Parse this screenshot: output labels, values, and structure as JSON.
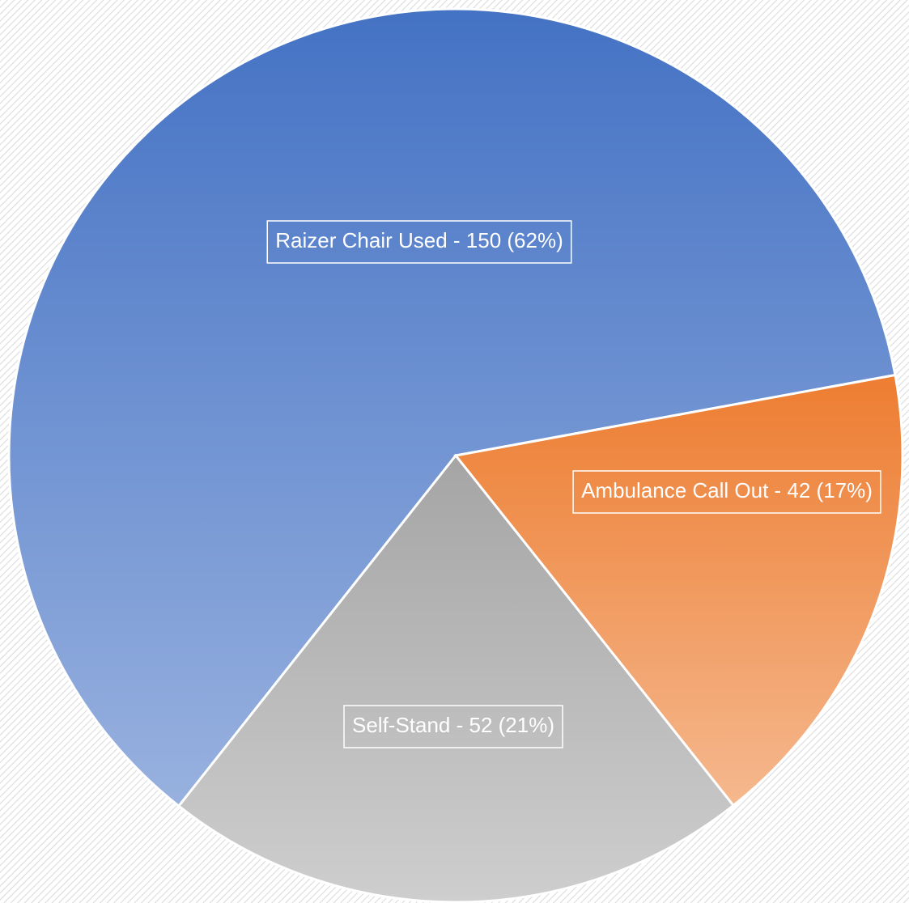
{
  "chart_data": {
    "type": "pie",
    "categories": [
      "Raizer Chair Used",
      "Ambulance Call Out",
      "Self-Stand"
    ],
    "values": [
      150,
      42,
      52
    ],
    "value_labels": [
      "Raizer Chair Used - 150 (62%)",
      "Ambulance Call Out - 42 (17%)",
      "Self-Stand - 52 (21%)"
    ],
    "colors": [
      "#4472c4",
      "#ed7d31",
      "#a5a5a5"
    ]
  }
}
